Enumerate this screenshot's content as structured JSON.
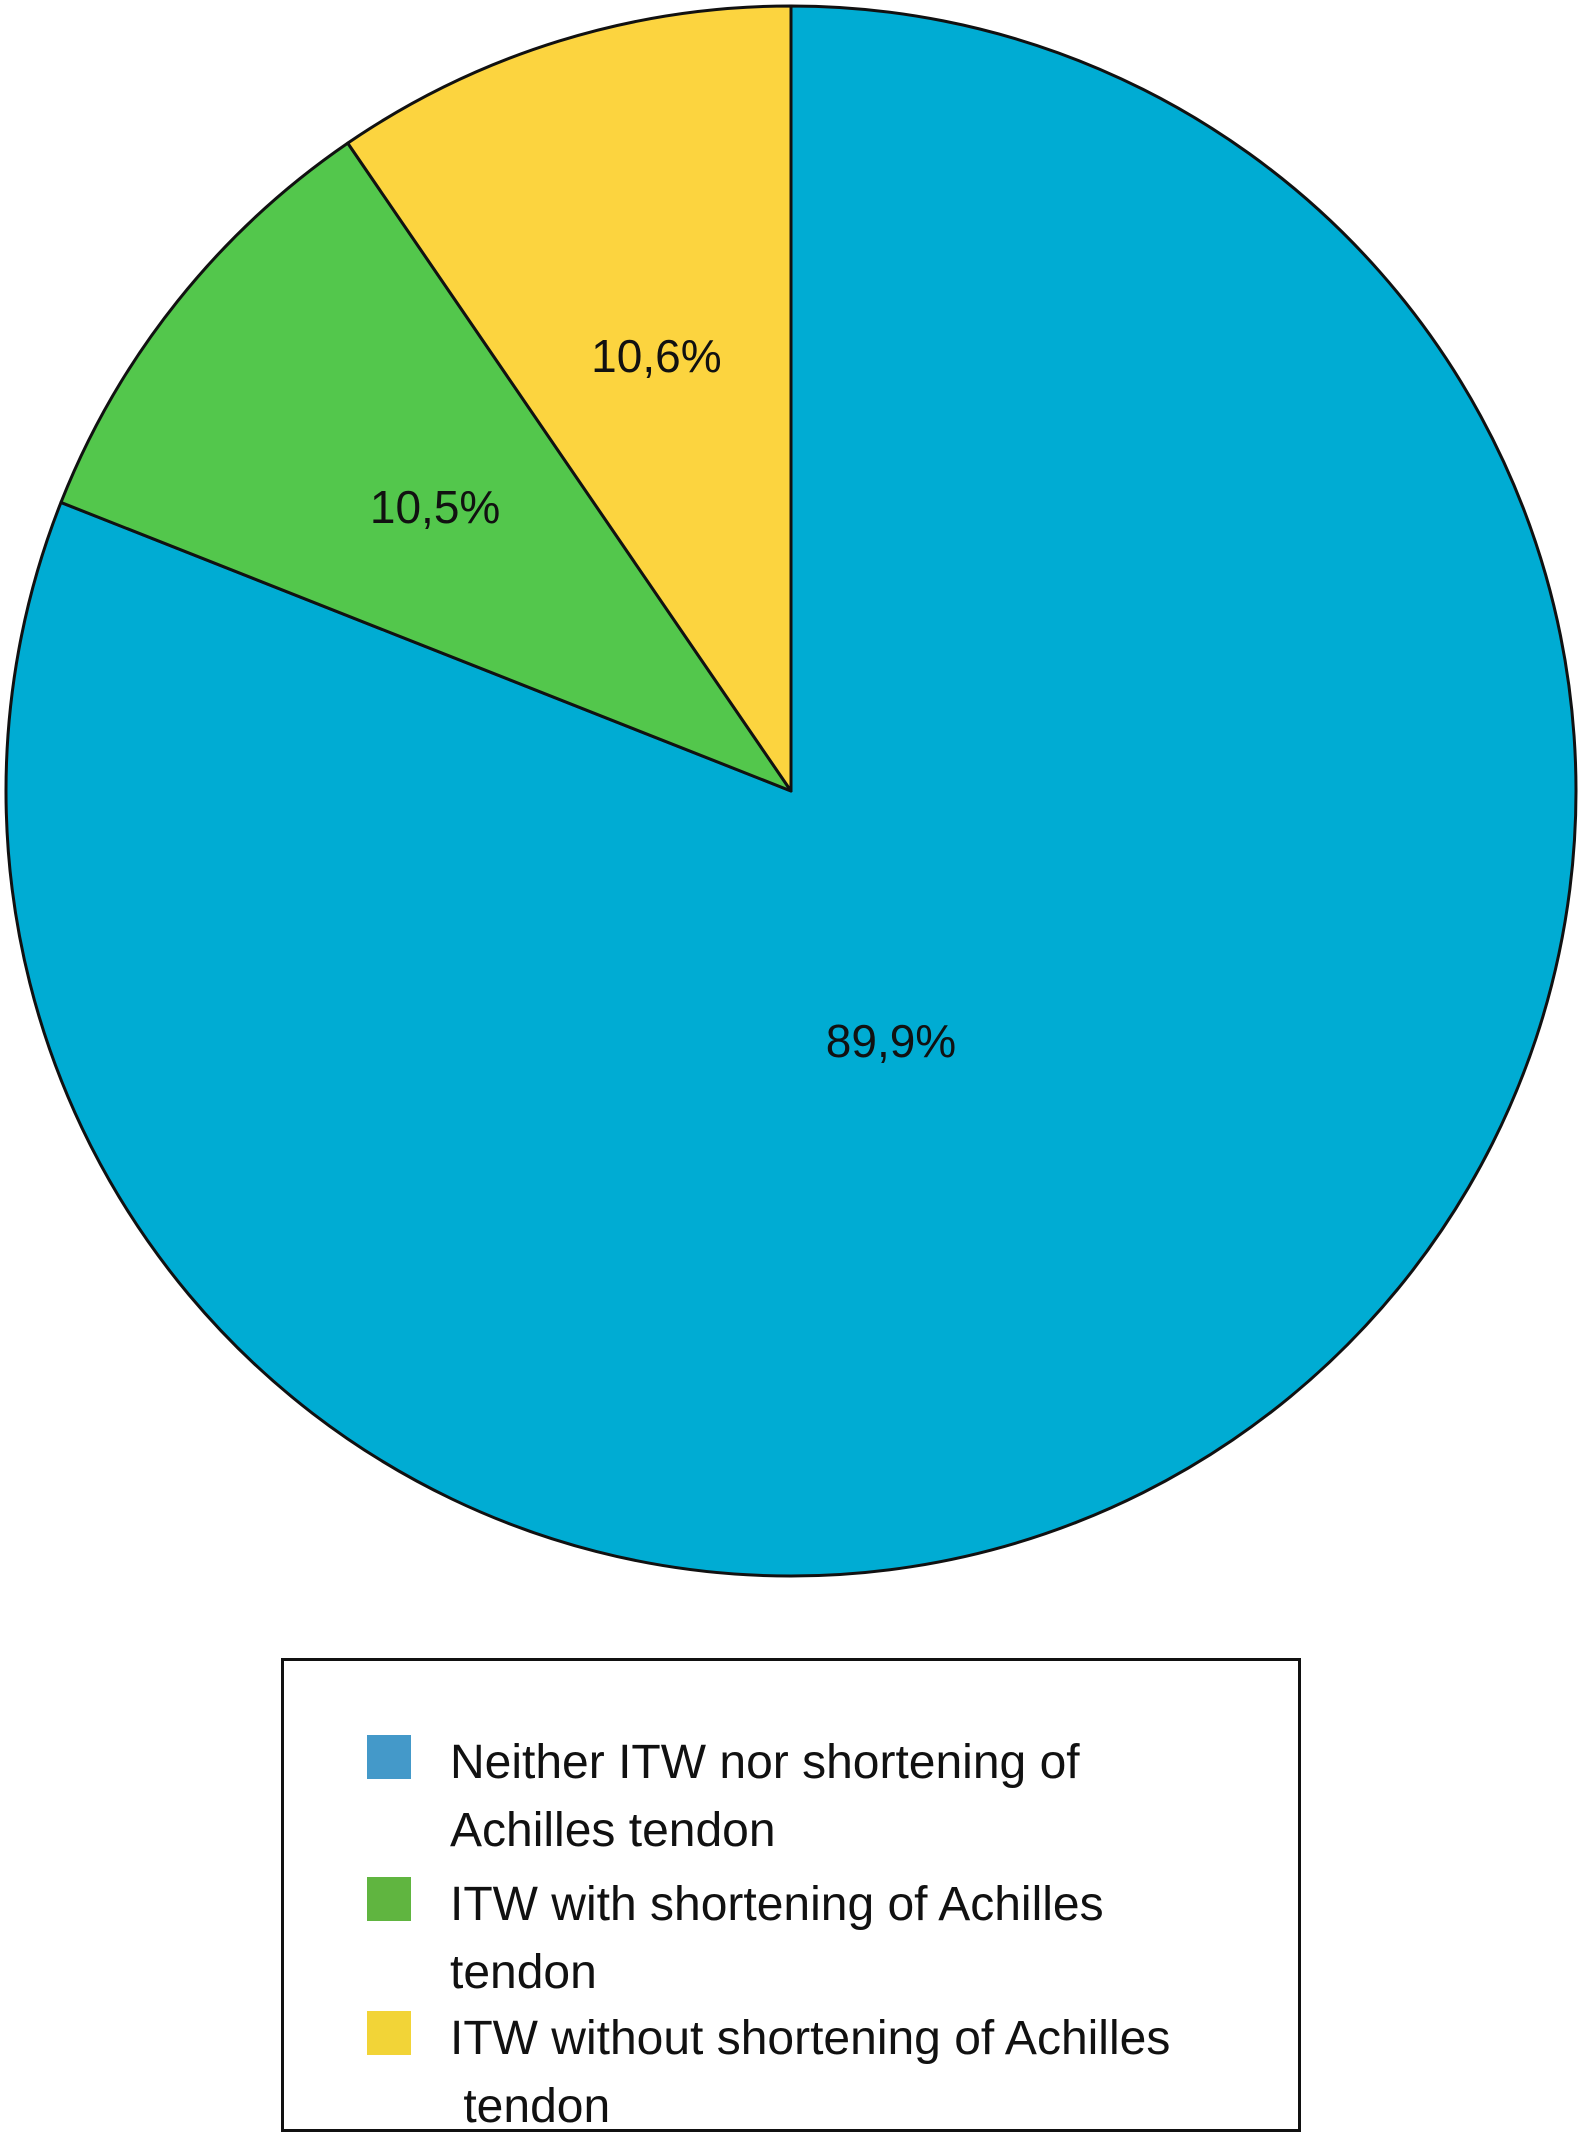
{
  "chart_data": {
    "type": "pie",
    "slices": [
      {
        "name": "Neither ITW nor shortening of Achilles tendon",
        "value": 89.9,
        "label": "89,9%",
        "color": "#00acd3"
      },
      {
        "name": "ITW with shortening of Achilles tendon",
        "value": 10.5,
        "label": "10,5%",
        "color": "#53c74c"
      },
      {
        "name": "ITW without shortening of Achilles tendon",
        "value": 10.6,
        "label": "10,6%",
        "color": "#fcd43f"
      }
    ],
    "start_angle_deg": 0,
    "direction": "clockwise",
    "legend": {
      "placement": "bottom",
      "items": [
        {
          "label": "Neither ITW nor shortening of\nAchilles tendon",
          "color": "#4499c9"
        },
        {
          "label": "ITW with shortening of Achilles\ntendon",
          "color": "#60b540"
        },
        {
          "label": "ITW without shortening of Achilles\n tendon",
          "color": "#f2d437"
        }
      ]
    }
  }
}
